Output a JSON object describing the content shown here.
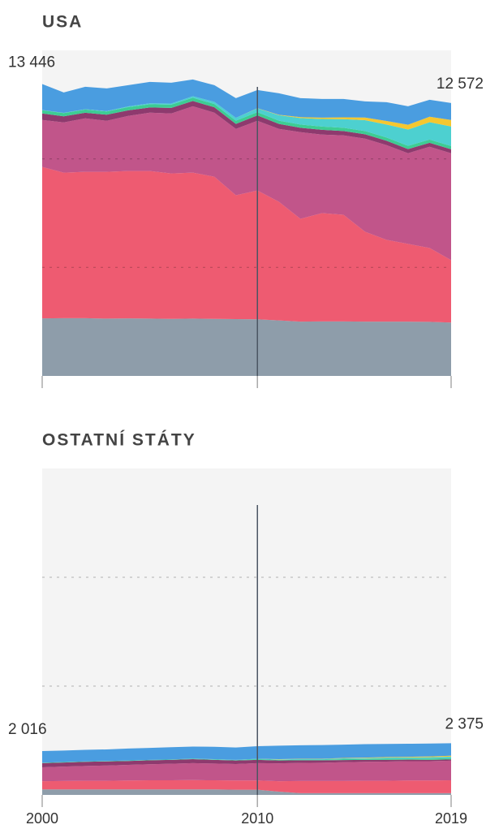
{
  "chart_data": [
    {
      "type": "stacked_area",
      "title": "USA",
      "x": [
        2000,
        2001,
        2002,
        2003,
        2004,
        2005,
        2006,
        2007,
        2008,
        2009,
        2010,
        2011,
        2012,
        2013,
        2014,
        2015,
        2016,
        2017,
        2018,
        2019
      ],
      "xlim": [
        2000,
        2019
      ],
      "xticks": [
        2000,
        2010,
        2019
      ],
      "marker_x": 2010,
      "ylim": [
        0,
        15000
      ],
      "yticks": [
        5000,
        10000
      ],
      "grid": true,
      "start_label": {
        "value": 13446,
        "label": "13 446"
      },
      "end_label": {
        "value": 12572,
        "label": "12 572"
      },
      "series": [
        {
          "color": "#8e9daa",
          "values": [
            2650,
            2660,
            2660,
            2640,
            2650,
            2640,
            2630,
            2640,
            2630,
            2620,
            2610,
            2560,
            2500,
            2510,
            2510,
            2500,
            2500,
            2500,
            2490,
            2460
          ]
        },
        {
          "color": "#ee5b71",
          "values": [
            6977,
            6706,
            6743,
            6763,
            6790,
            6800,
            6698,
            6726,
            6549,
            5701,
            5935,
            5462,
            4739,
            4990,
            4915,
            4142,
            3769,
            3582,
            3406,
            2876
          ]
        },
        {
          "color": "#c1558a",
          "values": [
            2164,
            2313,
            2463,
            2351,
            2538,
            2687,
            2762,
            3059,
            2948,
            3060,
            3209,
            3359,
            3992,
            3619,
            3657,
            4291,
            4365,
            4179,
            4664,
            4925
          ]
        },
        {
          "color": "#8e3a6e",
          "values": [
            300,
            280,
            260,
            280,
            260,
            240,
            260,
            240,
            250,
            230,
            250,
            230,
            200,
            220,
            200,
            200,
            200,
            190,
            180,
            180
          ]
        },
        {
          "color": "#3dcc93",
          "values": [
            150,
            150,
            150,
            150,
            150,
            150,
            150,
            150,
            150,
            150,
            150,
            150,
            150,
            150,
            150,
            150,
            150,
            150,
            150,
            150
          ]
        },
        {
          "color": "#4dd0d0",
          "values": [
            10,
            10,
            10,
            20,
            30,
            40,
            50,
            70,
            100,
            130,
            170,
            250,
            300,
            350,
            400,
            500,
            600,
            750,
            800,
            900
          ]
        },
        {
          "color": "#f4c730",
          "values": [
            0,
            0,
            0,
            0,
            0,
            0,
            0,
            0,
            0,
            0,
            10,
            20,
            40,
            60,
            80,
            120,
            160,
            220,
            250,
            300
          ]
        },
        {
          "color": "#4a9de0",
          "values": [
            1195,
            941,
            1035,
            1042,
            978,
            988,
            958,
            772,
            769,
            908,
            838,
            991,
            878,
            862,
            849,
            746,
            868,
            854,
            784,
            781
          ]
        }
      ]
    },
    {
      "type": "stacked_area",
      "title": "OSTATNÍ STÁTY",
      "x": [
        2000,
        2001,
        2002,
        2003,
        2004,
        2005,
        2006,
        2007,
        2008,
        2009,
        2010,
        2011,
        2012,
        2013,
        2014,
        2015,
        2016,
        2017,
        2018,
        2019
      ],
      "xlim": [
        2000,
        2019
      ],
      "xticks": [
        2000,
        2010,
        2019
      ],
      "marker_x": 2010,
      "ylim": [
        0,
        15000
      ],
      "yticks": [
        5000,
        10000
      ],
      "grid": true,
      "start_label": {
        "value": 2016,
        "label": "2 016"
      },
      "end_label": {
        "value": 2375,
        "label": "2 375"
      },
      "series": [
        {
          "color": "#8e9daa",
          "values": [
            250,
            250,
            250,
            250,
            250,
            250,
            250,
            250,
            250,
            240,
            240,
            150,
            80,
            80,
            80,
            80,
            80,
            80,
            80,
            80
          ]
        },
        {
          "color": "#ee5b71",
          "values": [
            380,
            390,
            400,
            400,
            410,
            420,
            420,
            430,
            420,
            420,
            420,
            480,
            560,
            560,
            560,
            570,
            570,
            580,
            580,
            590
          ]
        },
        {
          "color": "#c1558a",
          "values": [
            640,
            660,
            680,
            700,
            720,
            740,
            760,
            780,
            770,
            760,
            800,
            820,
            830,
            840,
            860,
            870,
            880,
            890,
            890,
            900
          ]
        },
        {
          "color": "#8e3a6e",
          "values": [
            190,
            190,
            190,
            190,
            180,
            180,
            180,
            180,
            170,
            160,
            150,
            130,
            120,
            110,
            100,
            90,
            80,
            70,
            60,
            60
          ]
        },
        {
          "color": "#3dcc93",
          "values": [
            20,
            20,
            20,
            20,
            20,
            20,
            20,
            20,
            20,
            20,
            30,
            30,
            30,
            30,
            40,
            40,
            50,
            50,
            60,
            60
          ]
        },
        {
          "color": "#4dd0d0",
          "values": [
            0,
            0,
            0,
            0,
            0,
            0,
            0,
            10,
            10,
            10,
            20,
            20,
            30,
            30,
            40,
            40,
            50,
            50,
            60,
            70
          ]
        },
        {
          "color": "#f4c730",
          "values": [
            0,
            0,
            0,
            0,
            0,
            0,
            0,
            0,
            0,
            0,
            0,
            10,
            10,
            10,
            20,
            20,
            30,
            30,
            40,
            40
          ]
        },
        {
          "color": "#4a9de0",
          "values": [
            536,
            530,
            530,
            530,
            550,
            550,
            560,
            550,
            570,
            570,
            580,
            620,
            620,
            630,
            610,
            620,
            600,
            600,
            590,
            575
          ]
        }
      ]
    }
  ]
}
